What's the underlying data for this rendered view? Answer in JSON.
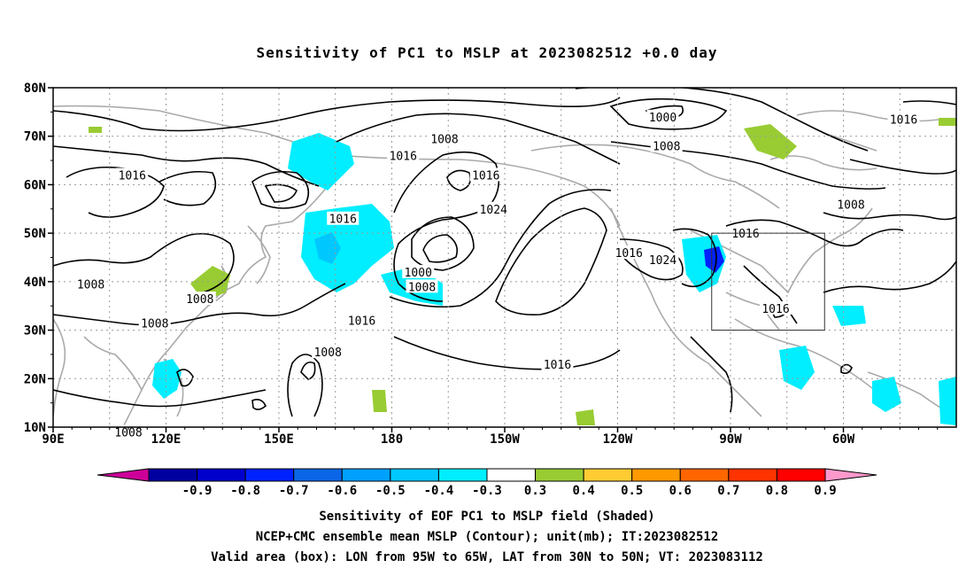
{
  "title": "Sensitivity of PC1 to MSLP at 2023082512 +0.0 day",
  "map": {
    "lat_ticks": [
      "80N",
      "70N",
      "60N",
      "50N",
      "40N",
      "30N",
      "20N",
      "10N"
    ],
    "lon_ticks": [
      "90E",
      "120E",
      "150E",
      "180",
      "150W",
      "120W",
      "90W",
      "60W"
    ],
    "contour_labels": [
      {
        "text": "1016",
        "lon": 111,
        "lat": 62
      },
      {
        "text": "1008",
        "lon": 100,
        "lat": 39.5
      },
      {
        "text": "1008",
        "lon": 129,
        "lat": 36.5
      },
      {
        "text": "1008",
        "lon": 117,
        "lat": 31.5
      },
      {
        "text": "1008",
        "lon": 110,
        "lat": 9
      },
      {
        "text": "1008",
        "lon": 163,
        "lat": 25.5
      },
      {
        "text": "1016",
        "lon": 172,
        "lat": 32
      },
      {
        "text": "1016",
        "lon": 167,
        "lat": 53
      },
      {
        "text": "1016",
        "lon": 183,
        "lat": 66
      },
      {
        "text": "1008",
        "lon": 194,
        "lat": 69.5
      },
      {
        "text": "1000",
        "lon": 187,
        "lat": 42
      },
      {
        "text": "1008",
        "lon": 188,
        "lat": 39
      },
      {
        "text": "1016",
        "lon": 205,
        "lat": 62
      },
      {
        "text": "1024",
        "lon": 207,
        "lat": 55
      },
      {
        "text": "1016",
        "lon": 224,
        "lat": 23
      },
      {
        "text": "1016",
        "lon": 243,
        "lat": 46
      },
      {
        "text": "1024",
        "lon": 252,
        "lat": 44.5
      },
      {
        "text": "1000",
        "lon": 252,
        "lat": 74
      },
      {
        "text": "1008",
        "lon": 253,
        "lat": 68
      },
      {
        "text": "1016",
        "lon": 274,
        "lat": 50
      },
      {
        "text": "1016",
        "lon": 282,
        "lat": 34.5
      },
      {
        "text": "1008",
        "lon": 302,
        "lat": 56
      },
      {
        "text": "1016",
        "lon": 316,
        "lat": 73.5
      }
    ],
    "valid_box": {
      "lon_w": -95,
      "lon_e": -65,
      "lat_s": 30,
      "lat_n": 50
    }
  },
  "colorbar": {
    "labels": [
      "-0.9",
      "-0.8",
      "-0.7",
      "-0.6",
      "-0.5",
      "-0.4",
      "-0.3",
      "0.3",
      "0.4",
      "0.5",
      "0.6",
      "0.7",
      "0.8",
      "0.9"
    ],
    "colors": [
      "#0000a0",
      "#0000cc",
      "#0022ff",
      "#0a66e6",
      "#00a0ff",
      "#00c8ff",
      "#00eeff",
      "#ffffff",
      "#99cc33",
      "#ffcc33",
      "#ff9900",
      "#ff6600",
      "#ff3300",
      "#ff0000"
    ],
    "low_end_color": "#cc0099",
    "high_end_color": "#ff99cc"
  },
  "captions": {
    "line1": "Sensitivity of EOF PC1 to MSLP field (Shaded)",
    "line2": "NCEP+CMC ensemble mean MSLP (Contour); unit(mb); IT:2023082512",
    "line3": "Valid area (box): LON from 95W to 65W, LAT from 30N to 50N; VT: 2023083112"
  }
}
